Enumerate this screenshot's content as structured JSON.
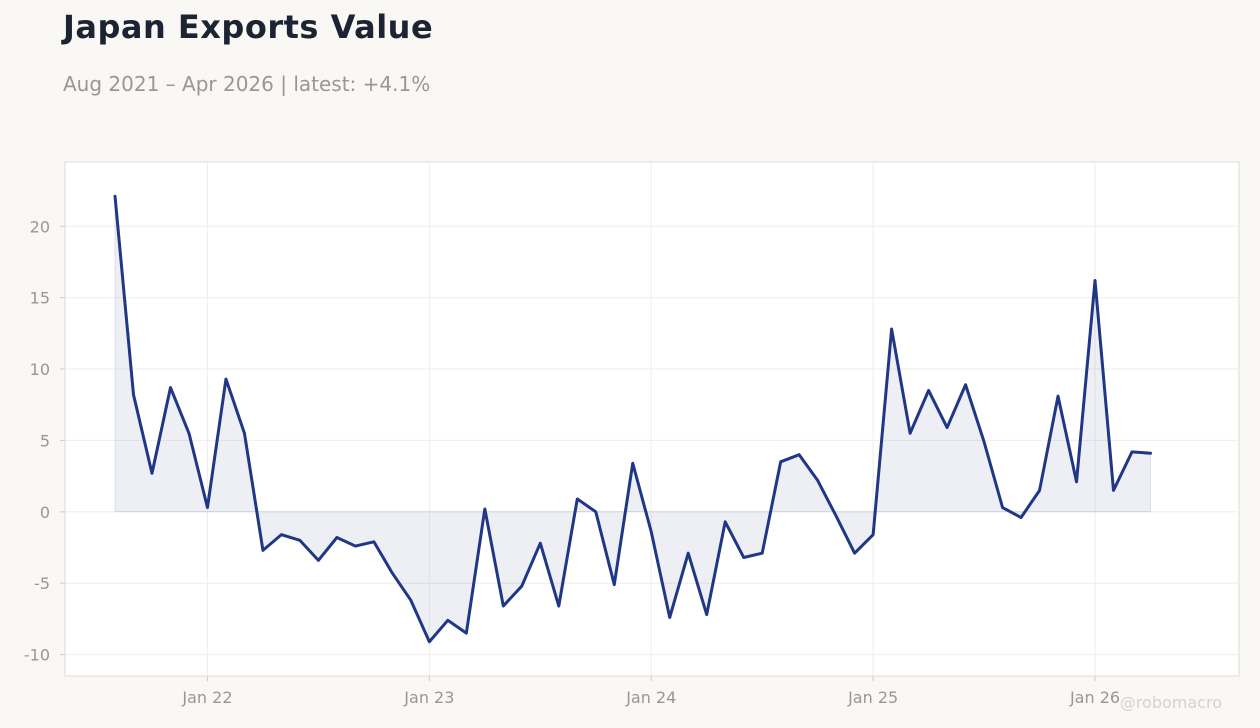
{
  "header": {
    "title": "Japan Exports Value",
    "subtitle": "Aug 2021 – Apr 2026 | latest: +4.1%"
  },
  "watermark": "@robomacro",
  "colors": {
    "background": "#f9f8f5",
    "plot_background": "#ffffff",
    "line": "#1f3785",
    "fill": "#1f3785",
    "tick_text": "#9a9792",
    "title": "#1c2333"
  },
  "chart_data": {
    "type": "area",
    "title": "Japan Exports Value",
    "subtitle": "Aug 2021 – Apr 2026 | latest: +4.1%",
    "xlabel": "",
    "ylabel": "",
    "grid": true,
    "x_start": "2021-08",
    "xlim": [
      "2021-05-10",
      "2026-08-25"
    ],
    "ylim": [
      -11.5,
      24.5
    ],
    "y_ticks": [
      -10,
      -5,
      0,
      5,
      10,
      15,
      20
    ],
    "x_ticks": [
      {
        "label": "Jan 22",
        "date": "2022-01"
      },
      {
        "label": "Jan 23",
        "date": "2023-01"
      },
      {
        "label": "Jan 24",
        "date": "2024-01"
      },
      {
        "label": "Jan 25",
        "date": "2025-01"
      },
      {
        "label": "Jan 26",
        "date": "2026-01"
      }
    ],
    "series": [
      {
        "values": [
          22.1,
          8.2,
          2.7,
          8.7,
          5.5,
          0.3,
          9.3,
          5.5,
          -2.7,
          -1.6,
          -2.0,
          -3.4,
          -1.8,
          -2.4,
          -2.1,
          -4.3,
          -6.2,
          -9.1,
          -7.6,
          -8.5,
          0.2,
          -6.6,
          -5.2,
          -2.2,
          -6.6,
          0.9,
          0.0,
          -5.1,
          3.4,
          -1.4,
          -7.4,
          -2.9,
          -7.2,
          -0.7,
          -3.2,
          -2.9,
          3.5,
          4.0,
          2.2,
          -0.3,
          -2.9,
          -1.6,
          12.8,
          5.5,
          8.5,
          5.9,
          8.9,
          4.9,
          0.3,
          -0.4,
          1.5,
          8.1,
          2.1,
          16.2,
          1.5,
          4.2,
          4.1
        ]
      }
    ]
  }
}
